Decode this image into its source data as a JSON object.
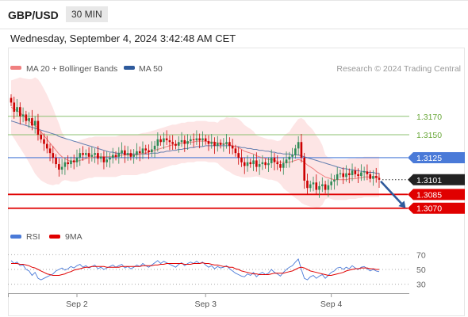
{
  "header": {
    "symbol": "GBP/USD",
    "timeframe": "30 MIN",
    "datetime": "Wednesday, September 4, 2024 3:42:48 AM CET"
  },
  "legend": {
    "ma20_label": "MA 20 + Bollinger Bands",
    "ma50_label": "MA 50",
    "ma20_color": "#f08080",
    "ma50_color": "#2e5a9c",
    "credit": "Research © 2024 Trading Central"
  },
  "rsi_legend": {
    "rsi_label": "RSI",
    "ma9_label": "9MA",
    "rsi_color": "#4a7ad8",
    "ma9_color": "#e00000"
  },
  "colors": {
    "bull": "#2e8b57",
    "bear": "#cc0000",
    "resistance": "#8cc070",
    "pivot": "#4a7ad8",
    "support": "#e00000",
    "band": "#fddede",
    "arrow": "#2e5a9c",
    "current": "#222222"
  },
  "chart_data": {
    "type": "line",
    "title": "",
    "x_ticks": [
      "Sep 2",
      "Sep 3",
      "Sep 4"
    ],
    "price_levels": [
      {
        "name": "resistance-2",
        "value": 1.317,
        "label": "1.3170"
      },
      {
        "name": "resistance-1",
        "value": 1.315,
        "label": "1.3150"
      },
      {
        "name": "pivot",
        "value": 1.3125,
        "label": "1.3125"
      },
      {
        "name": "current",
        "value": 1.3101,
        "label": "1.3101"
      },
      {
        "name": "support-1",
        "value": 1.3085,
        "label": "1.3085"
      },
      {
        "name": "support-2",
        "value": 1.307,
        "label": "1.3070"
      }
    ],
    "price_range": [
      1.3062,
      1.32
    ],
    "closes": [
      1.3185,
      1.3175,
      1.318,
      1.317,
      1.3172,
      1.3165,
      1.3168,
      1.316,
      1.3165,
      1.315,
      1.3145,
      1.314,
      1.3135,
      1.313,
      1.3125,
      1.3118,
      1.3112,
      1.3115,
      1.312,
      1.3118,
      1.3122,
      1.312,
      1.3125,
      1.313,
      1.3128,
      1.313,
      1.3126,
      1.3128,
      1.313,
      1.3124,
      1.3126,
      1.312,
      1.3123,
      1.3125,
      1.3128,
      1.3126,
      1.313,
      1.3133,
      1.3128,
      1.313,
      1.3126,
      1.3128,
      1.3132,
      1.313,
      1.3135,
      1.3133,
      1.3131,
      1.3134,
      1.3138,
      1.3145,
      1.3142,
      1.3146,
      1.3144,
      1.3142,
      1.314,
      1.3138,
      1.3142,
      1.3144,
      1.314,
      1.3143,
      1.3145,
      1.3144,
      1.3146,
      1.3144,
      1.3146,
      1.3143,
      1.314,
      1.3142,
      1.3138,
      1.3141,
      1.3139,
      1.314,
      1.3142,
      1.3138,
      1.3135,
      1.313,
      1.3125,
      1.312,
      1.3116,
      1.312,
      1.3118,
      1.3122,
      1.3115,
      1.3118,
      1.312,
      1.3117,
      1.3119,
      1.3125,
      1.312,
      1.3118,
      1.3114,
      1.3119,
      1.3123,
      1.3126,
      1.3128,
      1.3135,
      1.3142,
      1.3125,
      1.31,
      1.3092,
      1.3096,
      1.3098,
      1.309,
      1.3094,
      1.3096,
      1.309,
      1.3095,
      1.3099,
      1.3101,
      1.3107,
      1.3108,
      1.3104,
      1.3108,
      1.3106,
      1.3111,
      1.3107,
      1.3105,
      1.3109,
      1.311,
      1.3107,
      1.3102,
      1.3105,
      1.3103,
      1.3101
    ],
    "ma20": [
      1.318,
      1.3178,
      1.3176,
      1.3174,
      1.3171,
      1.3168,
      1.3165,
      1.3162,
      1.316,
      1.3157,
      1.3153,
      1.3149,
      1.3145,
      1.3141,
      1.3137,
      1.3133,
      1.3129,
      1.3126,
      1.3124,
      1.3122,
      1.3121,
      1.3121,
      1.3121,
      1.3122,
      1.3123,
      1.3124,
      1.3125,
      1.3125,
      1.3126,
      1.3126,
      1.3126,
      1.3126,
      1.3126,
      1.3126,
      1.3126,
      1.3126,
      1.3127,
      1.3128,
      1.3128,
      1.3128,
      1.3128,
      1.3128,
      1.3128,
      1.3129,
      1.313,
      1.313,
      1.3131,
      1.3132,
      1.3133,
      1.3134,
      1.3135,
      1.3136,
      1.3137,
      1.3138,
      1.3139,
      1.3139,
      1.314,
      1.3141,
      1.3141,
      1.3142,
      1.3142,
      1.3142,
      1.3143,
      1.3143,
      1.3143,
      1.3143,
      1.3142,
      1.3142,
      1.3142,
      1.3141,
      1.3141,
      1.314,
      1.314,
      1.3139,
      1.3138,
      1.3137,
      1.3136,
      1.3134,
      1.3132,
      1.3131,
      1.313,
      1.3129,
      1.3127,
      1.3126,
      1.3125,
      1.3124,
      1.3123,
      1.3123,
      1.3122,
      1.3121,
      1.312,
      1.312,
      1.312,
      1.312,
      1.3121,
      1.3122,
      1.3123,
      1.3122,
      1.312,
      1.3117,
      1.3115,
      1.3113,
      1.311,
      1.3108,
      1.3106,
      1.3104,
      1.3103,
      1.3102,
      1.3101,
      1.3101,
      1.3101,
      1.3101,
      1.3101,
      1.3102,
      1.3102,
      1.3102,
      1.3103,
      1.3103,
      1.3104,
      1.3104,
      1.3104,
      1.3104,
      1.3104,
      1.3104
    ],
    "ma50": [
      1.3165,
      1.3164,
      1.3163,
      1.3162,
      1.3161,
      1.316,
      1.3159,
      1.3158,
      1.3157,
      1.3156,
      1.3155,
      1.3154,
      1.3153,
      1.3152,
      1.3151,
      1.315,
      1.3148,
      1.3147,
      1.3146,
      1.3145,
      1.3144,
      1.3143,
      1.3142,
      1.3141,
      1.314,
      1.3139,
      1.3138,
      1.3137,
      1.3136,
      1.3135,
      1.3134,
      1.3133,
      1.3132,
      1.3131,
      1.3131,
      1.313,
      1.313,
      1.313,
      1.3129,
      1.3129,
      1.3129,
      1.3129,
      1.3129,
      1.3129,
      1.3129,
      1.3129,
      1.3129,
      1.313,
      1.313,
      1.313,
      1.3131,
      1.3131,
      1.3132,
      1.3132,
      1.3133,
      1.3133,
      1.3134,
      1.3134,
      1.3135,
      1.3135,
      1.3136,
      1.3136,
      1.3137,
      1.3137,
      1.3137,
      1.3138,
      1.3138,
      1.3138,
      1.3138,
      1.3138,
      1.3138,
      1.3138,
      1.3138,
      1.3138,
      1.3138,
      1.3137,
      1.3137,
      1.3136,
      1.3136,
      1.3135,
      1.3135,
      1.3134,
      1.3134,
      1.3133,
      1.3133,
      1.3132,
      1.3132,
      1.3131,
      1.3131,
      1.313,
      1.313,
      1.3129,
      1.3129,
      1.3129,
      1.3128,
      1.3128,
      1.3128,
      1.3127,
      1.3126,
      1.3125,
      1.3124,
      1.3123,
      1.3122,
      1.3121,
      1.312,
      1.3119,
      1.3118,
      1.3117,
      1.3116,
      1.3115,
      1.3114,
      1.3113,
      1.3113,
      1.3112,
      1.3112,
      1.3111,
      1.3111,
      1.311,
      1.311,
      1.3109,
      1.3109,
      1.3109,
      1.3108,
      1.3108
    ],
    "rsi_ticks": [
      70,
      50,
      30
    ],
    "rsi_range": [
      20,
      80
    ],
    "rsi": [
      62,
      58,
      60,
      55,
      56,
      50,
      48,
      42,
      46,
      38,
      36,
      38,
      40,
      42,
      44,
      48,
      50,
      52,
      49,
      51,
      54,
      52,
      55,
      57,
      53,
      55,
      52,
      54,
      56,
      51,
      53,
      50,
      52,
      54,
      56,
      53,
      55,
      57,
      52,
      54,
      51,
      53,
      56,
      54,
      58,
      55,
      53,
      56,
      59,
      62,
      58,
      61,
      59,
      57,
      55,
      53,
      57,
      59,
      55,
      58,
      60,
      58,
      61,
      58,
      60,
      56,
      53,
      55,
      51,
      54,
      52,
      53,
      55,
      51,
      48,
      45,
      43,
      41,
      40,
      44,
      42,
      46,
      40,
      44,
      46,
      43,
      45,
      50,
      46,
      44,
      41,
      46,
      50,
      53,
      55,
      60,
      64,
      50,
      38,
      36,
      40,
      42,
      38,
      41,
      43,
      38,
      42,
      46,
      48,
      52,
      53,
      50,
      53,
      51,
      55,
      52,
      50,
      53,
      54,
      51,
      48,
      50,
      48,
      47
    ],
    "rsi_ma9": [
      58,
      58,
      58,
      57,
      57,
      56,
      55,
      53,
      52,
      50,
      48,
      46,
      44,
      43,
      42,
      42,
      42,
      43,
      44,
      46,
      47,
      49,
      50,
      51,
      52,
      53,
      53,
      54,
      54,
      54,
      54,
      54,
      53,
      53,
      53,
      53,
      53,
      54,
      54,
      54,
      54,
      54,
      54,
      54,
      55,
      55,
      55,
      55,
      56,
      56,
      57,
      57,
      58,
      58,
      58,
      58,
      58,
      58,
      57,
      57,
      57,
      58,
      58,
      58,
      59,
      58,
      58,
      57,
      56,
      56,
      55,
      54,
      54,
      53,
      53,
      51,
      50,
      48,
      47,
      46,
      45,
      44,
      44,
      43,
      43,
      43,
      43,
      44,
      45,
      45,
      45,
      45,
      46,
      47,
      48,
      50,
      52,
      53,
      52,
      50,
      48,
      47,
      46,
      45,
      44,
      43,
      42,
      42,
      43,
      44,
      45,
      46,
      48,
      49,
      50,
      51,
      51,
      52,
      52,
      52,
      51,
      51,
      50,
      50
    ]
  }
}
